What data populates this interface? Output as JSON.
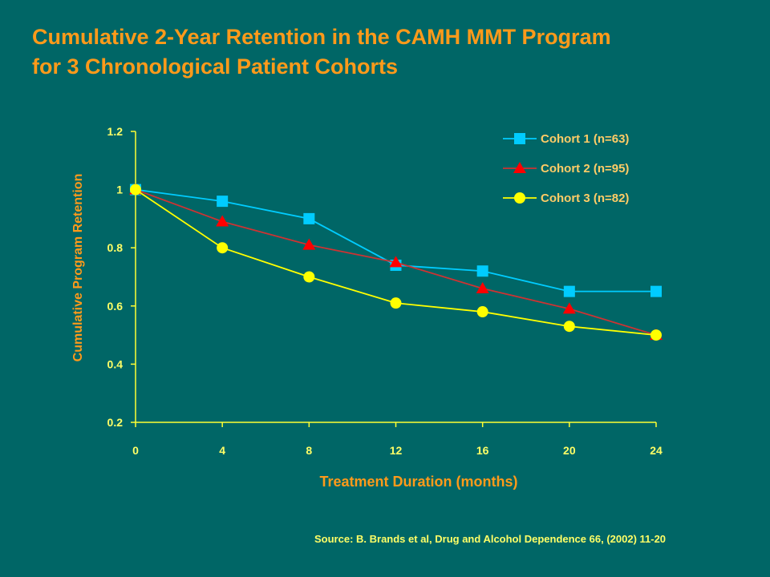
{
  "page": {
    "title_line1": "Cumulative 2-Year Retention in the CAMH MMT Program",
    "title_line2": "for 3 Chronological Patient Cohorts",
    "source": "Source: B. Brands et al,  Drug and Alcohol Dependence 66, (2002) 11-20"
  },
  "colors": {
    "background": "#006666",
    "title": "#ff9a1a",
    "axis": "#ffff33",
    "axis_labels": "#ffff66",
    "axis_title": "#ff9a1a",
    "legend_text": "#ffcc66"
  },
  "chart_data": {
    "type": "line",
    "title": "",
    "xlabel": "Treatment Duration (months)",
    "ylabel": "Cumulative Program Retention",
    "x": [
      0,
      4,
      8,
      12,
      16,
      20,
      24
    ],
    "xticks": [
      "0",
      "4",
      "8",
      "12",
      "16",
      "20",
      "24"
    ],
    "yticks": [
      "0.2",
      "0.4",
      "0.6",
      "0.8",
      "1",
      "1.2"
    ],
    "xlim": [
      0,
      24
    ],
    "ylim": [
      0.2,
      1.2
    ],
    "grid": false,
    "legend_position": "top-right",
    "series": [
      {
        "name": "Cohort 1 (n=63)",
        "color": "#00ccff",
        "marker": "square",
        "values": [
          1.0,
          0.96,
          0.9,
          0.74,
          0.72,
          0.65,
          0.65
        ]
      },
      {
        "name": "Cohort 2 (n=95)",
        "color": "#ff0000",
        "line_color": "#cc3333",
        "marker": "triangle",
        "values": [
          1.0,
          0.89,
          0.81,
          0.75,
          0.66,
          0.59,
          0.5
        ]
      },
      {
        "name": "Cohort 3 (n=82)",
        "color": "#ffff00",
        "marker": "circle",
        "values": [
          1.0,
          0.8,
          0.7,
          0.61,
          0.58,
          0.53,
          0.5
        ]
      }
    ]
  }
}
